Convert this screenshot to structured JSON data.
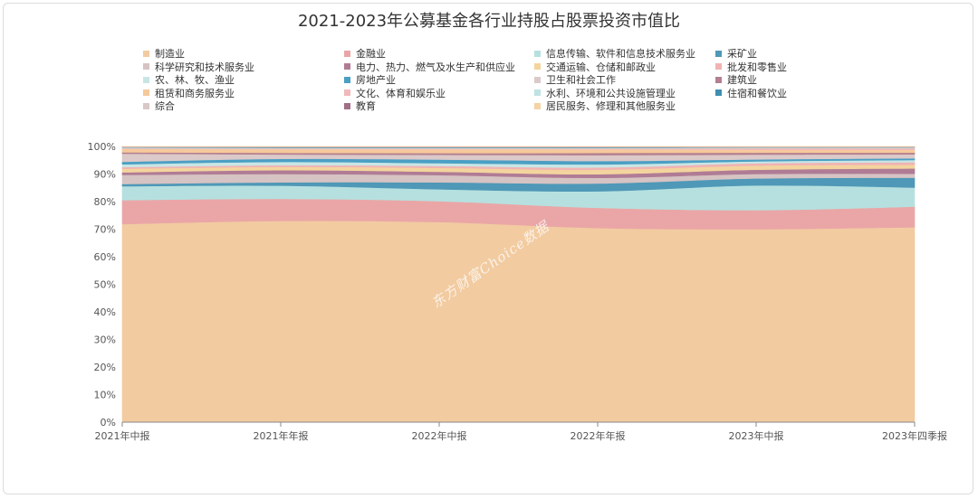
{
  "chart_data": {
    "type": "area",
    "stacked": true,
    "normalized": true,
    "title": "2021-2023年公募基金各行业持股占股票投资市值比",
    "xlabel": "",
    "ylabel": "",
    "categories": [
      "2021年中报",
      "2021年年报",
      "2022年中报",
      "2022年年报",
      "2023年中报",
      "2023年四季报"
    ],
    "ylim": [
      0,
      100
    ],
    "yticks": [
      "0%",
      "10%",
      "20%",
      "30%",
      "40%",
      "50%",
      "60%",
      "70%",
      "80%",
      "90%",
      "100%"
    ],
    "grid": false,
    "legend_position": "top",
    "series": [
      {
        "name": "制造业",
        "color": "#f2cba1",
        "values": [
          71.2,
          73.0,
          72.0,
          69.3,
          68.8,
          69.3
        ]
      },
      {
        "name": "金融业",
        "color": "#eaa6a6",
        "values": [
          8.6,
          8.0,
          7.5,
          7.2,
          6.8,
          7.3
        ]
      },
      {
        "name": "信息传输、软件和信息技术服务业",
        "color": "#b6e0df",
        "values": [
          5.0,
          4.8,
          4.3,
          5.9,
          8.8,
          6.8
        ]
      },
      {
        "name": "采矿业",
        "color": "#4f98b7",
        "values": [
          0.8,
          1.2,
          2.5,
          2.8,
          2.5,
          3.5
        ]
      },
      {
        "name": "科学研究和技术服务业",
        "color": "#d6c3c3",
        "values": [
          3.3,
          3.0,
          2.6,
          2.0,
          1.6,
          1.4
        ]
      },
      {
        "name": "电力、热力、燃气及水生产和供应业",
        "color": "#b07c95",
        "values": [
          0.9,
          1.4,
          1.2,
          1.3,
          1.5,
          1.9
        ]
      },
      {
        "name": "交通运输、仓储和邮政业",
        "color": "#f4d49e",
        "values": [
          1.3,
          1.2,
          1.4,
          1.6,
          1.5,
          1.3
        ]
      },
      {
        "name": "批发和零售业",
        "color": "#f0b3b3",
        "values": [
          0.6,
          0.6,
          0.7,
          0.8,
          0.8,
          0.9
        ]
      },
      {
        "name": "农、林、牧、渔业",
        "color": "#c8e6e5",
        "values": [
          1.0,
          1.2,
          1.0,
          1.1,
          0.7,
          0.8
        ]
      },
      {
        "name": "房地产业",
        "color": "#4a9fc4",
        "values": [
          0.9,
          1.1,
          1.3,
          1.2,
          0.7,
          0.6
        ]
      },
      {
        "name": "卫生和社会工作",
        "color": "#dcc9c9",
        "values": [
          2.9,
          1.6,
          1.7,
          2.1,
          1.7,
          1.4
        ]
      },
      {
        "name": "建筑业",
        "color": "#b5808f",
        "values": [
          0.5,
          0.6,
          0.6,
          0.8,
          0.7,
          0.6
        ]
      },
      {
        "name": "租赁和商务服务业",
        "color": "#f6c99b",
        "values": [
          1.2,
          1.3,
          1.4,
          1.3,
          1.0,
          1.0
        ]
      },
      {
        "name": "文化、体育和娱乐业",
        "color": "#f1b9b9",
        "values": [
          0.3,
          0.3,
          0.3,
          0.3,
          0.6,
          0.6
        ]
      },
      {
        "name": "水利、环境和公共设施管理业",
        "color": "#bde3e2",
        "values": [
          0.2,
          0.2,
          0.2,
          0.2,
          0.2,
          0.2
        ]
      },
      {
        "name": "住宿和餐饮业",
        "color": "#3f8fb0",
        "values": [
          0.1,
          0.2,
          0.2,
          0.2,
          0.1,
          0.1
        ]
      },
      {
        "name": "综合",
        "color": "#d9c8c8",
        "values": [
          0.1,
          0.1,
          0.1,
          0.1,
          0.1,
          0.1
        ]
      },
      {
        "name": "教育",
        "color": "#a06f88",
        "values": [
          0.1,
          0.1,
          0.1,
          0.1,
          0.1,
          0.1
        ]
      },
      {
        "name": "居民服务、修理和其他服务业",
        "color": "#f5d3a3",
        "values": [
          0.1,
          0.1,
          0.1,
          0.1,
          0.1,
          0.1
        ]
      }
    ]
  },
  "watermark": "东方财富Choice数据"
}
